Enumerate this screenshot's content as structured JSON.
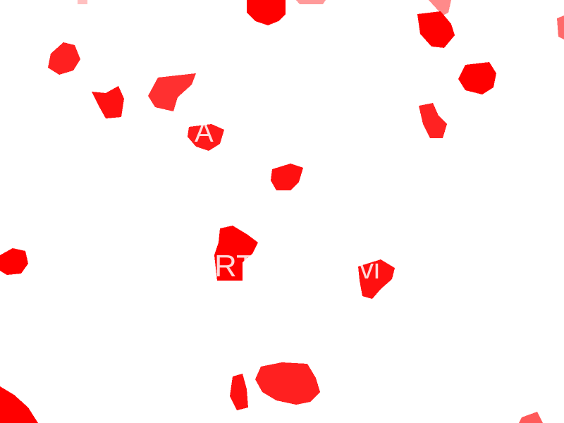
{
  "colors": {
    "background": "#ffffff",
    "blob_core": "#ff0000",
    "blob_edge": "#ff3b3b",
    "blob_fringe": "#ff9a9a"
  },
  "overlay_text": {
    "fragment_1": "A",
    "fragment_2": "RT",
    "fragment_3": "vi"
  }
}
